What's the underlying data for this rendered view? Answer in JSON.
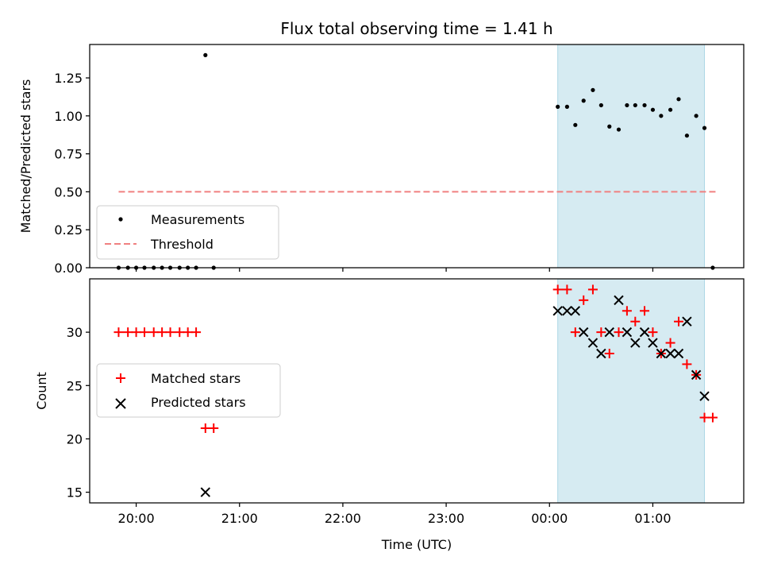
{
  "chart_data": {
    "type": "scatter",
    "title": "Flux total observing time = 1.41 h",
    "xlabel": "Time (UTC)",
    "x_ticks": [
      "20:00",
      "21:00",
      "22:00",
      "23:00",
      "00:00",
      "01:00"
    ],
    "x_tick_hours": [
      20,
      21,
      22,
      23,
      24,
      25
    ],
    "xlim_hours": [
      19.55,
      25.88
    ],
    "observing_window_hours": [
      24.08,
      25.5
    ],
    "colors": {
      "window": "#add8e6",
      "threshold": "#f08080",
      "matched": "#ff0000",
      "predicted": "#000000",
      "measurement": "#000000"
    },
    "top": {
      "ylabel": "Matched/Predicted stars",
      "ylim": [
        0,
        1.47
      ],
      "y_ticks": [
        "0.00",
        "0.25",
        "0.50",
        "0.75",
        "1.00",
        "1.25"
      ],
      "y_tick_values": [
        0,
        0.25,
        0.5,
        0.75,
        1.0,
        1.25
      ],
      "legend": {
        "placement": "lower-left",
        "measurements_label": "Measurements",
        "threshold_label": "Threshold"
      },
      "threshold": {
        "value": 0.5,
        "x_range_hours": [
          19.83,
          25.62
        ]
      },
      "measurements": {
        "x": [
          19.83,
          19.92,
          20.0,
          20.08,
          20.17,
          20.25,
          20.33,
          20.42,
          20.5,
          20.58,
          20.67,
          20.75,
          24.08,
          24.17,
          24.25,
          24.33,
          24.42,
          24.5,
          24.58,
          24.67,
          24.75,
          24.83,
          24.92,
          25.0,
          25.08,
          25.17,
          25.25,
          25.33,
          25.42,
          25.5,
          25.58
        ],
        "y": [
          0,
          0,
          0,
          0,
          0,
          0,
          0,
          0,
          0,
          0,
          1.4,
          0,
          1.06,
          1.06,
          0.94,
          1.1,
          1.17,
          1.07,
          0.93,
          0.91,
          1.07,
          1.07,
          1.07,
          1.04,
          1.0,
          1.04,
          1.11,
          0.87,
          1.0,
          0.92,
          0
        ]
      }
    },
    "bottom": {
      "ylabel": "Count",
      "ylim": [
        14.0,
        35.0
      ],
      "y_ticks": [
        "15",
        "20",
        "25",
        "30"
      ],
      "y_tick_values": [
        15,
        20,
        25,
        30
      ],
      "legend": {
        "placement": "center-left",
        "matched_label": "Matched stars",
        "predicted_label": "Predicted stars"
      },
      "matched": {
        "x": [
          19.83,
          19.92,
          20.0,
          20.08,
          20.17,
          20.25,
          20.33,
          20.42,
          20.5,
          20.58,
          20.67,
          20.75,
          24.08,
          24.17,
          24.25,
          24.33,
          24.42,
          24.5,
          24.58,
          24.67,
          24.75,
          24.83,
          24.92,
          25.0,
          25.08,
          25.17,
          25.25,
          25.33,
          25.42,
          25.5,
          25.58
        ],
        "y": [
          30,
          30,
          30,
          30,
          30,
          30,
          30,
          30,
          30,
          30,
          21,
          21,
          34,
          34,
          30,
          33,
          34,
          30,
          28,
          30,
          32,
          31,
          32,
          30,
          28,
          29,
          31,
          27,
          26,
          22,
          22
        ]
      },
      "predicted": {
        "x": [
          20.67,
          24.08,
          24.17,
          24.25,
          24.33,
          24.42,
          24.5,
          24.58,
          24.67,
          24.75,
          24.83,
          24.92,
          25.0,
          25.08,
          25.17,
          25.25,
          25.33,
          25.42,
          25.5
        ],
        "y": [
          15,
          32,
          32,
          32,
          30,
          29,
          28,
          30,
          33,
          30,
          29,
          30,
          29,
          28,
          28,
          28,
          31,
          26,
          24
        ]
      }
    }
  }
}
